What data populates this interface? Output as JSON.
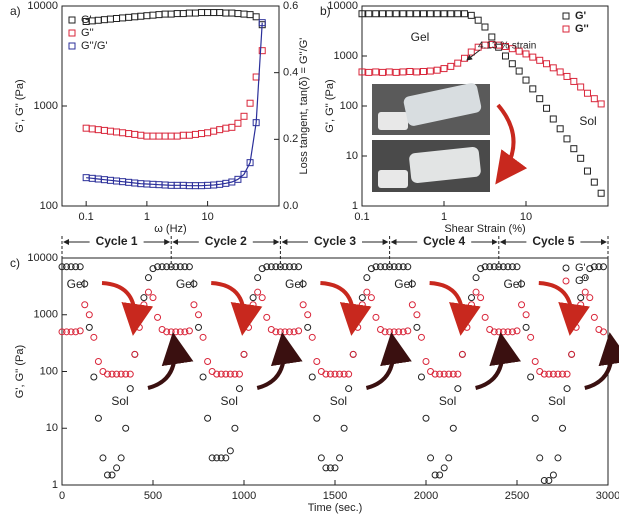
{
  "chart_data": [
    {
      "type": "scatter",
      "panel_label": "a)",
      "x_label": "ω (Hz)",
      "y_label": "G', G'' (Pa)",
      "y2_label": "Loss tangent, tan(δ) = G''/G'",
      "xscale": "log",
      "yscale": "log",
      "xlim": [
        0.04,
        150
      ],
      "ylim": [
        100,
        10000
      ],
      "y2lim": [
        0,
        0.6
      ],
      "xticks": [
        0.1,
        1,
        10
      ],
      "yticks": [
        100,
        1000,
        10000
      ],
      "y2ticks": [
        {
          "value": 0,
          "label": "0.0"
        },
        0.2,
        0.4,
        0.6
      ],
      "legend": "upper left",
      "marker": "square",
      "x": [
        0.1,
        0.126,
        0.158,
        0.2,
        0.251,
        0.316,
        0.398,
        0.501,
        0.631,
        0.794,
        1,
        1.26,
        1.58,
        2,
        2.51,
        3.16,
        3.98,
        5.01,
        6.31,
        7.94,
        10,
        12.6,
        15.8,
        20,
        25.1,
        31.6,
        39.8,
        50.1,
        63.1,
        79.4
      ],
      "series": [
        {
          "name": "G'",
          "color": "#222222",
          "values": [
            7000,
            7100,
            7200,
            7300,
            7400,
            7500,
            7600,
            7700,
            7800,
            7900,
            8000,
            8100,
            8200,
            8300,
            8300,
            8400,
            8400,
            8500,
            8500,
            8600,
            8600,
            8600,
            8600,
            8500,
            8500,
            8400,
            8300,
            8200,
            7800,
            6500
          ]
        },
        {
          "name": "G''",
          "color": "#d9263a",
          "values": [
            600,
            590,
            580,
            570,
            560,
            550,
            540,
            530,
            520,
            510,
            500,
            500,
            500,
            500,
            500,
            500,
            510,
            510,
            520,
            530,
            540,
            560,
            580,
            600,
            612,
            672,
            789,
            1066,
            1950,
            3575
          ]
        },
        {
          "name": "G''/G'",
          "color": "#2b2f9a",
          "axis": "y2",
          "line": true,
          "values": [
            0.085,
            0.083,
            0.081,
            0.079,
            0.077,
            0.075,
            0.073,
            0.071,
            0.069,
            0.067,
            0.066,
            0.065,
            0.064,
            0.063,
            0.062,
            0.062,
            0.062,
            0.061,
            0.061,
            0.061,
            0.062,
            0.063,
            0.065,
            0.068,
            0.072,
            0.08,
            0.095,
            0.13,
            0.25,
            0.55
          ]
        }
      ]
    },
    {
      "type": "scatter",
      "panel_label": "b)",
      "x_label": "Shear Strain (%)",
      "y_label": "G', G'' (Pa)",
      "xscale": "log",
      "yscale": "log",
      "xlim": [
        0.1,
        100
      ],
      "ylim": [
        1,
        10000
      ],
      "xticks": [
        0.1,
        1,
        10
      ],
      "yticks": [
        1,
        10,
        100,
        1000,
        10000
      ],
      "legend": "upper right",
      "marker": "square",
      "annotations": [
        "Gel",
        "4.13 % strain",
        "Sol"
      ],
      "x": [
        0.1,
        0.121,
        0.147,
        0.178,
        0.215,
        0.261,
        0.316,
        0.383,
        0.464,
        0.562,
        0.681,
        0.825,
        1,
        1.21,
        1.47,
        1.78,
        2.15,
        2.61,
        3.16,
        3.83,
        4.64,
        5.62,
        6.81,
        8.25,
        10,
        12.1,
        14.7,
        17.8,
        21.5,
        26.1,
        31.6,
        38.3,
        46.4,
        56.2,
        68.1,
        82.5
      ],
      "series": [
        {
          "name": "G'",
          "color": "#222222",
          "values": [
            7000,
            7000,
            7000,
            7000,
            7000,
            7000,
            7000,
            7000,
            7000,
            7000,
            7000,
            7000,
            7000,
            7000,
            7000,
            7000,
            6500,
            5200,
            3800,
            2400,
            1500,
            1000,
            700,
            500,
            330,
            220,
            140,
            90,
            55,
            35,
            22,
            14,
            9,
            5,
            3,
            1.8
          ]
        },
        {
          "name": "G''",
          "color": "#d9263a",
          "values": [
            480,
            470,
            480,
            470,
            480,
            470,
            480,
            490,
            480,
            490,
            500,
            520,
            560,
            620,
            720,
            900,
            1200,
            1500,
            1650,
            1700,
            1650,
            1550,
            1400,
            1250,
            1100,
            950,
            820,
            700,
            580,
            480,
            390,
            310,
            240,
            180,
            140,
            110
          ]
        }
      ]
    },
    {
      "type": "scatter",
      "panel_label": "c)",
      "x_label": "Time (sec.)",
      "y_label": "G', G'' (Pa)",
      "xscale": "linear",
      "yscale": "log",
      "xlim": [
        0,
        3000
      ],
      "ylim": [
        1,
        10000
      ],
      "xticks": [
        0,
        500,
        1000,
        1500,
        2000,
        2500,
        3000
      ],
      "yticks": [
        1,
        10,
        100,
        1000,
        10000
      ],
      "legend": "upper right",
      "marker": "circle",
      "cycle_labels": [
        "Cycle 1",
        "Cycle 2",
        "Cycle 3",
        "Cycle 4",
        "Cycle 5"
      ],
      "annotations": [
        "Gel",
        "Sol",
        "Gel",
        "Sol",
        "Gel",
        "Sol",
        "Gel",
        "Sol",
        "Gel",
        "Sol"
      ],
      "x": [
        0,
        25,
        50,
        75,
        100,
        125,
        150,
        175,
        200,
        225,
        250,
        275,
        300,
        325,
        350,
        375,
        400,
        425,
        450,
        475,
        500,
        525,
        550,
        575,
        600,
        625,
        650,
        675,
        700,
        725,
        750,
        775,
        800,
        825,
        850,
        875,
        900,
        925,
        950,
        975,
        1000,
        1025,
        1050,
        1075,
        1100,
        1125,
        1150,
        1175,
        1200,
        1225,
        1250,
        1275,
        1300,
        1325,
        1350,
        1375,
        1400,
        1425,
        1450,
        1475,
        1500,
        1525,
        1550,
        1575,
        1600,
        1625,
        1650,
        1675,
        1700,
        1725,
        1750,
        1775,
        1800,
        1825,
        1850,
        1875,
        1900,
        1925,
        1950,
        1975,
        2000,
        2025,
        2050,
        2075,
        2100,
        2125,
        2150,
        2175,
        2200,
        2225,
        2250,
        2275,
        2300,
        2325,
        2350,
        2375,
        2400,
        2425,
        2450,
        2475,
        2500,
        2525,
        2550,
        2575,
        2600,
        2625,
        2650,
        2675,
        2700,
        2725,
        2750,
        2775,
        2800,
        2825,
        2850,
        2875,
        2900,
        2925,
        2950,
        2975
      ],
      "series": [
        {
          "name": "G'",
          "color": "#222222",
          "values": [
            7000,
            7000,
            7000,
            7000,
            7000,
            3500,
            600,
            80,
            15,
            3,
            1.5,
            1.5,
            2,
            3,
            10,
            50,
            200,
            800,
            2000,
            4500,
            6500,
            7000,
            7000,
            7000,
            7000,
            7000,
            7000,
            7000,
            7000,
            3500,
            600,
            80,
            15,
            3,
            3,
            3,
            3,
            4,
            10,
            50,
            200,
            800,
            2000,
            4500,
            6500,
            7000,
            7000,
            7000,
            7000,
            7000,
            7000,
            7000,
            7000,
            3500,
            600,
            80,
            15,
            3,
            2,
            2,
            2,
            3,
            10,
            50,
            200,
            800,
            2000,
            4500,
            6500,
            7000,
            7000,
            7000,
            7000,
            7000,
            7000,
            7000,
            7000,
            3500,
            600,
            80,
            15,
            3,
            1.5,
            1.5,
            2,
            3,
            10,
            50,
            200,
            800,
            2000,
            4500,
            6500,
            7000,
            7000,
            7000,
            7000,
            7000,
            7000,
            7000,
            7000,
            3500,
            600,
            80,
            15,
            3,
            1.2,
            1.2,
            1.5,
            3,
            10,
            50,
            200,
            800,
            2000,
            4500,
            6500,
            7000,
            7000,
            7000
          ]
        },
        {
          "name": "G''",
          "color": "#d9263a",
          "values": [
            500,
            500,
            500,
            500,
            520,
            1500,
            1000,
            400,
            150,
            100,
            90,
            90,
            90,
            90,
            90,
            90,
            200,
            600,
            1500,
            2500,
            2000,
            900,
            550,
            500,
            500,
            500,
            500,
            500,
            520,
            1500,
            1000,
            400,
            150,
            100,
            90,
            90,
            90,
            90,
            90,
            90,
            200,
            600,
            1500,
            2500,
            2000,
            900,
            550,
            500,
            500,
            500,
            500,
            500,
            520,
            1500,
            1000,
            400,
            150,
            100,
            90,
            90,
            90,
            90,
            90,
            90,
            200,
            600,
            1500,
            2500,
            2000,
            900,
            550,
            500,
            500,
            500,
            500,
            500,
            520,
            1500,
            1000,
            400,
            150,
            100,
            90,
            90,
            90,
            90,
            90,
            90,
            200,
            600,
            1500,
            2500,
            2000,
            900,
            550,
            500,
            500,
            500,
            500,
            500,
            520,
            1500,
            1000,
            400,
            150,
            100,
            90,
            90,
            90,
            90,
            90,
            90,
            200,
            600,
            1500,
            2500,
            2000,
            900,
            550,
            500
          ]
        }
      ]
    }
  ]
}
